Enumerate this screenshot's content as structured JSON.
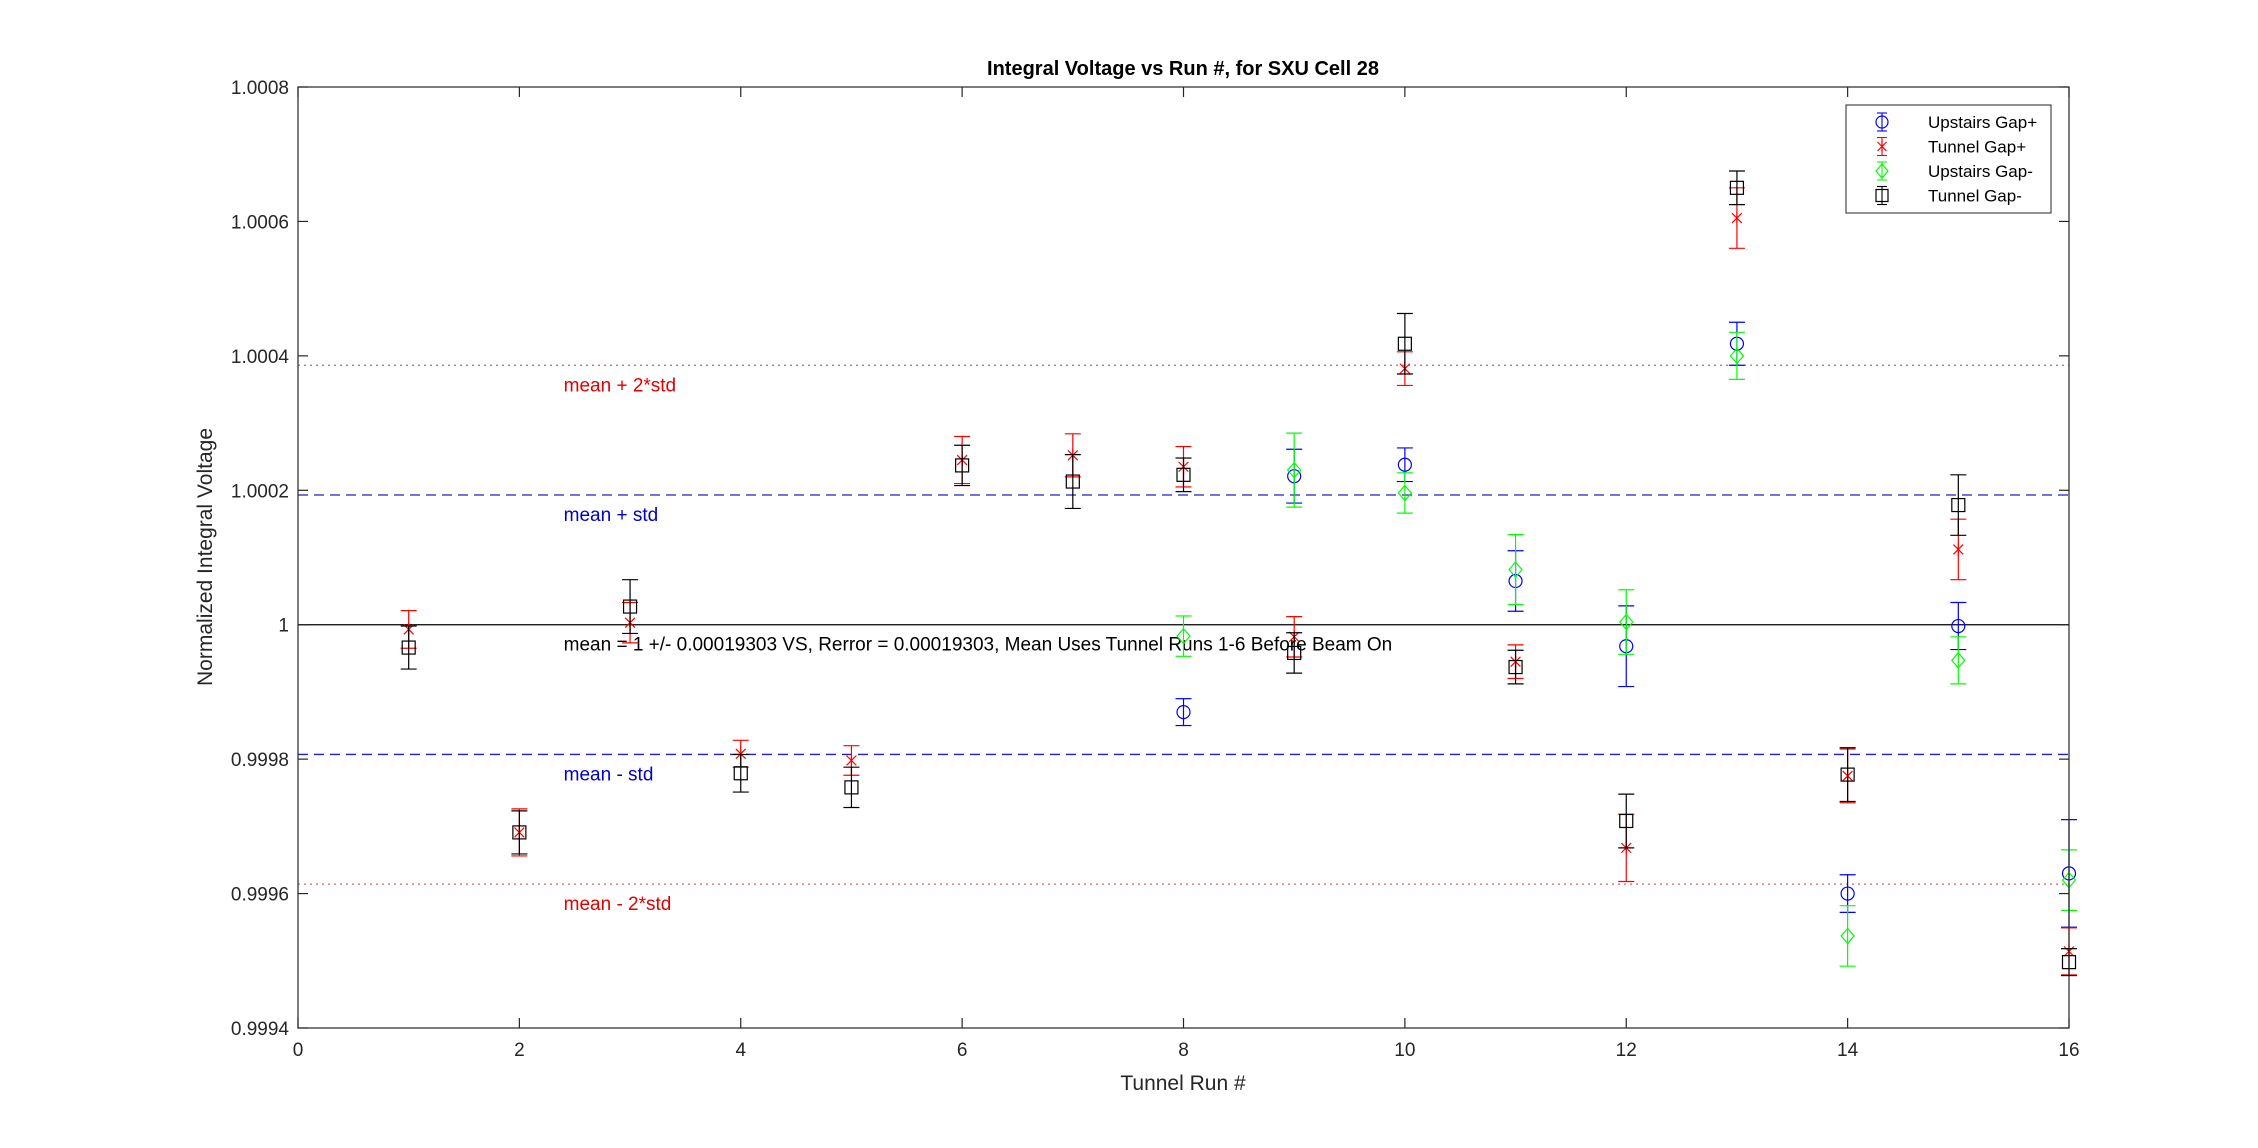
{
  "chart_data": {
    "type": "scatter",
    "title": "Integral Voltage vs Run #, for SXU Cell 28",
    "xlabel": "Tunnel Run #",
    "ylabel": "Normalized Integral Voltage",
    "xlim": [
      0,
      16
    ],
    "ylim": [
      0.9994,
      1.0008
    ],
    "xticks": [
      0,
      2,
      4,
      6,
      8,
      10,
      12,
      14,
      16
    ],
    "xtick_labels": [
      "0",
      "2",
      "4",
      "6",
      "8",
      "10",
      "12",
      "14",
      "16"
    ],
    "yticks": [
      0.9994,
      0.9996,
      0.9998,
      1.0,
      1.0002,
      1.0004,
      1.0006,
      1.0008
    ],
    "ytick_labels": [
      "0.9994",
      "0.9996",
      "0.9998",
      "1",
      "1.0002",
      "1.0004",
      "1.0006",
      "1.0008"
    ],
    "grid": false,
    "legend_position": "top-right",
    "colors": {
      "blue": "#0000ff",
      "red": "#ff0000",
      "green": "#00ff00",
      "black": "#000000",
      "blue_line": "#1f1fcf",
      "red_line": "#e06060"
    },
    "series": [
      {
        "name": "Upstairs Gap+",
        "marker": "circle",
        "color": "#0000ff",
        "points": [
          {
            "x": 8,
            "y": 0.99987,
            "err": 2e-05
          },
          {
            "x": 9,
            "y": 1.000221,
            "err": 4e-05
          },
          {
            "x": 10,
            "y": 1.000238,
            "err": 2.5e-05
          },
          {
            "x": 11,
            "y": 1.000065,
            "err": 4.5e-05
          },
          {
            "x": 12,
            "y": 0.999968,
            "err": 6e-05
          },
          {
            "x": 13,
            "y": 1.000418,
            "err": 3.2e-05
          },
          {
            "x": 14,
            "y": 0.9996,
            "err": 2.8e-05
          },
          {
            "x": 15,
            "y": 0.999998,
            "err": 3.5e-05
          },
          {
            "x": 16,
            "y": 0.99963,
            "err": 8e-05
          }
        ]
      },
      {
        "name": "Tunnel Gap+",
        "marker": "star",
        "color": "#ff0000",
        "points": [
          {
            "x": 1,
            "y": 0.999993,
            "err": 2.8e-05
          },
          {
            "x": 2,
            "y": 0.999691,
            "err": 3.5e-05
          },
          {
            "x": 3,
            "y": 1.000003,
            "err": 3e-05
          },
          {
            "x": 4,
            "y": 0.999808,
            "err": 2e-05
          },
          {
            "x": 5,
            "y": 0.999798,
            "err": 2.2e-05
          },
          {
            "x": 6,
            "y": 1.000245,
            "err": 3.5e-05
          },
          {
            "x": 7,
            "y": 1.000252,
            "err": 3.2e-05
          },
          {
            "x": 8,
            "y": 1.000235,
            "err": 3e-05
          },
          {
            "x": 9,
            "y": 0.999982,
            "err": 3e-05
          },
          {
            "x": 10,
            "y": 1.000381,
            "err": 2.5e-05
          },
          {
            "x": 11,
            "y": 0.999945,
            "err": 2.5e-05
          },
          {
            "x": 12,
            "y": 0.999668,
            "err": 5e-05
          },
          {
            "x": 13,
            "y": 1.000605,
            "err": 4.5e-05
          },
          {
            "x": 14,
            "y": 0.999775,
            "err": 4e-05
          },
          {
            "x": 15,
            "y": 1.000112,
            "err": 4.5e-05
          },
          {
            "x": 16,
            "y": 0.999514,
            "err": 3.5e-05
          }
        ]
      },
      {
        "name": "Upstairs Gap-",
        "marker": "diamond",
        "color": "#00ff00",
        "points": [
          {
            "x": 8,
            "y": 0.999983,
            "err": 3e-05
          },
          {
            "x": 9,
            "y": 1.00023,
            "err": 5.5e-05
          },
          {
            "x": 10,
            "y": 1.000196,
            "err": 3e-05
          },
          {
            "x": 11,
            "y": 1.000082,
            "err": 5.2e-05
          },
          {
            "x": 12,
            "y": 1.000004,
            "err": 4.8e-05
          },
          {
            "x": 13,
            "y": 1.0004,
            "err": 3.5e-05
          },
          {
            "x": 14,
            "y": 0.999537,
            "err": 4.5e-05
          },
          {
            "x": 15,
            "y": 0.999947,
            "err": 3.5e-05
          },
          {
            "x": 16,
            "y": 0.99962,
            "err": 4.5e-05
          }
        ]
      },
      {
        "name": "Tunnel Gap-",
        "marker": "square",
        "color": "#000000",
        "points": [
          {
            "x": 1,
            "y": 0.999966,
            "err": 3.2e-05
          },
          {
            "x": 2,
            "y": 0.999691,
            "err": 3.2e-05
          },
          {
            "x": 3,
            "y": 1.000027,
            "err": 4e-05
          },
          {
            "x": 4,
            "y": 0.999779,
            "err": 2.8e-05
          },
          {
            "x": 5,
            "y": 0.999758,
            "err": 3e-05
          },
          {
            "x": 6,
            "y": 1.000237,
            "err": 3e-05
          },
          {
            "x": 7,
            "y": 1.000213,
            "err": 4e-05
          },
          {
            "x": 8,
            "y": 1.000223,
            "err": 2.5e-05
          },
          {
            "x": 9,
            "y": 0.999958,
            "err": 3e-05
          },
          {
            "x": 10,
            "y": 1.000418,
            "err": 4.5e-05
          },
          {
            "x": 11,
            "y": 0.999937,
            "err": 2.5e-05
          },
          {
            "x": 12,
            "y": 0.999708,
            "err": 4e-05
          },
          {
            "x": 13,
            "y": 1.00065,
            "err": 2.5e-05
          },
          {
            "x": 14,
            "y": 0.999777,
            "err": 4e-05
          },
          {
            "x": 15,
            "y": 1.000178,
            "err": 4.5e-05
          },
          {
            "x": 16,
            "y": 0.999498,
            "err": 2e-05
          }
        ]
      }
    ],
    "reference_lines": [
      {
        "y": 1.000386,
        "style": "dotted",
        "color": "#e06060",
        "label": "mean + 2*std",
        "label_color": "#e00000"
      },
      {
        "y": 1.000193,
        "style": "dashed",
        "color": "#1f1fcf",
        "label": "mean + std",
        "label_color": "#0000cc"
      },
      {
        "y": 1.0,
        "style": "solid",
        "color": "#000000",
        "label": "mean = 1 +/- 0.00019303 VS, Rerror = 0.00019303, Mean Uses Tunnel Runs 1-6 Before Beam On",
        "label_color": "#000000"
      },
      {
        "y": 0.999807,
        "style": "dashed",
        "color": "#1f1fcf",
        "label": "mean - std",
        "label_color": "#0000cc"
      },
      {
        "y": 0.999614,
        "style": "dotted",
        "color": "#e06060",
        "label": "mean - 2*std",
        "label_color": "#e00000"
      }
    ],
    "reference_label_x": 2.4
  }
}
